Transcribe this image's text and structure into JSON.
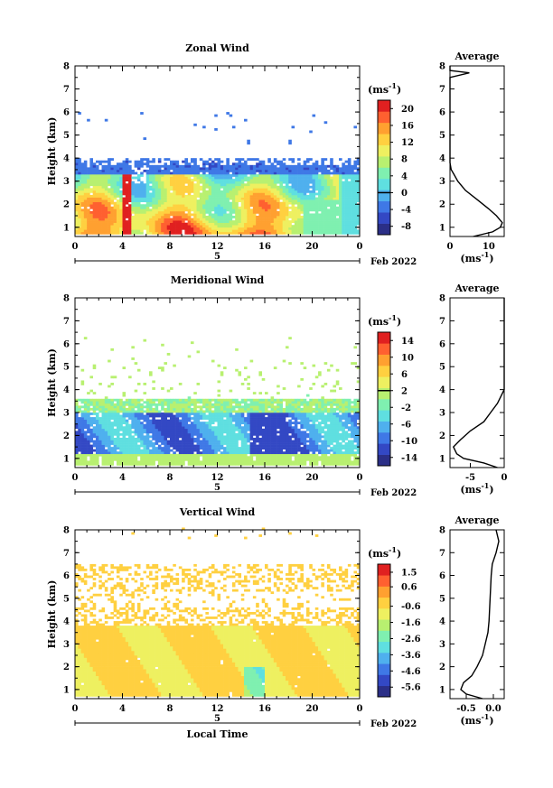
{
  "figure": {
    "date_label": "Feb 2022",
    "day_label": "5",
    "xlabel_bottom": "Local Time",
    "unit_label": "(ms",
    "unit_exp": "-1",
    "unit_close": ")"
  },
  "chart_data": [
    {
      "type": "heatmap",
      "title": "Zonal Wind",
      "xlabel": "",
      "ylabel": "Height (km)",
      "x_ticks": [
        "0",
        "4",
        "8",
        "12",
        "16",
        "20",
        "0"
      ],
      "y_ticks": [
        "1",
        "2",
        "3",
        "4",
        "5",
        "6",
        "7",
        "8"
      ],
      "xlim": [
        0,
        24
      ],
      "ylim": [
        0.6,
        8
      ],
      "colorbar_ticks": [
        "20",
        "16",
        "12",
        "8",
        "4",
        "0",
        "-4",
        "-8"
      ],
      "colorbar_range": [
        -10,
        22
      ],
      "colorbar_colors": [
        "#2b2f87",
        "#3348c4",
        "#3f78e6",
        "#4fb0ee",
        "#5fdfe0",
        "#7ff0b0",
        "#b8f070",
        "#eef060",
        "#ffd040",
        "#ffa030",
        "#ff6030",
        "#e02020"
      ],
      "average": {
        "title": "Average",
        "x_ticks": [
          "0",
          "10"
        ],
        "xlim": [
          0,
          14
        ],
        "profile": [
          [
            0.6,
            6
          ],
          [
            0.8,
            11
          ],
          [
            1.0,
            13
          ],
          [
            1.2,
            13.5
          ],
          [
            1.5,
            12
          ],
          [
            1.8,
            10
          ],
          [
            2.2,
            7
          ],
          [
            2.6,
            4
          ],
          [
            3.0,
            2
          ],
          [
            3.3,
            1
          ],
          [
            3.5,
            0.3
          ],
          [
            3.8,
            0
          ],
          [
            4.5,
            0
          ],
          [
            5.5,
            0
          ],
          [
            6.5,
            0
          ],
          [
            7.5,
            0
          ],
          [
            7.7,
            5
          ],
          [
            7.8,
            0
          ],
          [
            8.0,
            0
          ]
        ]
      },
      "zero_line_value": 0
    },
    {
      "type": "heatmap",
      "title": "Meridional Wind",
      "xlabel": "",
      "ylabel": "Height (km)",
      "x_ticks": [
        "0",
        "4",
        "8",
        "12",
        "16",
        "20",
        "0"
      ],
      "y_ticks": [
        "1",
        "2",
        "3",
        "4",
        "5",
        "6",
        "7",
        "8"
      ],
      "xlim": [
        0,
        24
      ],
      "ylim": [
        0.6,
        8
      ],
      "colorbar_ticks": [
        "14",
        "10",
        "6",
        "2",
        "-2",
        "-6",
        "-10",
        "-14"
      ],
      "colorbar_range": [
        -16,
        16
      ],
      "colorbar_colors": [
        "#2b2f87",
        "#3348c4",
        "#3f78e6",
        "#4fb0ee",
        "#5fdfe0",
        "#7ff0b0",
        "#b8f070",
        "#eef060",
        "#ffd040",
        "#ffa030",
        "#ff6030",
        "#e02020"
      ],
      "average": {
        "title": "Average",
        "x_ticks": [
          "-5",
          "0"
        ],
        "xlim": [
          -8,
          0
        ],
        "profile": [
          [
            0.6,
            -1
          ],
          [
            0.8,
            -3
          ],
          [
            1.0,
            -6
          ],
          [
            1.2,
            -7
          ],
          [
            1.5,
            -7.5
          ],
          [
            1.8,
            -6.5
          ],
          [
            2.2,
            -5
          ],
          [
            2.6,
            -3
          ],
          [
            3.0,
            -2
          ],
          [
            3.4,
            -1
          ],
          [
            3.7,
            -0.5
          ],
          [
            4.0,
            0
          ],
          [
            5.0,
            0
          ],
          [
            6.0,
            0
          ],
          [
            7.0,
            0
          ],
          [
            8.0,
            0
          ]
        ]
      },
      "zero_line_value": 2
    },
    {
      "type": "heatmap",
      "title": "Vertical Wind",
      "xlabel": "Local Time",
      "ylabel": "Height (km)",
      "x_ticks": [
        "0",
        "4",
        "8",
        "12",
        "16",
        "20",
        "0"
      ],
      "y_ticks": [
        "1",
        "2",
        "3",
        "4",
        "5",
        "6",
        "7",
        "8"
      ],
      "xlim": [
        0,
        24
      ],
      "ylim": [
        0.6,
        8
      ],
      "colorbar_ticks": [
        "1.5",
        "0.6",
        "-0.6",
        "-1.6",
        "-2.6",
        "-3.6",
        "-4.6",
        "-5.6"
      ],
      "colorbar_range": [
        -6.2,
        2.0
      ],
      "colorbar_colors": [
        "#2b2f87",
        "#3348c4",
        "#3f78e6",
        "#4fb0ee",
        "#5fdfe0",
        "#7ff0b0",
        "#b8f070",
        "#eef060",
        "#ffd040",
        "#ffa030",
        "#ff6030",
        "#e02020"
      ],
      "average": {
        "title": "Average",
        "x_ticks": [
          "-0.5",
          "0.0"
        ],
        "xlim": [
          -0.8,
          0.2
        ],
        "profile": [
          [
            0.6,
            -0.2
          ],
          [
            0.8,
            -0.5
          ],
          [
            1.0,
            -0.6
          ],
          [
            1.3,
            -0.55
          ],
          [
            1.6,
            -0.4
          ],
          [
            2.0,
            -0.3
          ],
          [
            2.5,
            -0.2
          ],
          [
            3.0,
            -0.15
          ],
          [
            3.5,
            -0.1
          ],
          [
            4.0,
            -0.08
          ],
          [
            5.0,
            -0.06
          ],
          [
            6.0,
            -0.04
          ],
          [
            6.5,
            -0.02
          ],
          [
            7.0,
            0.05
          ],
          [
            7.5,
            0.1
          ],
          [
            8.0,
            0.05
          ]
        ]
      }
    }
  ]
}
